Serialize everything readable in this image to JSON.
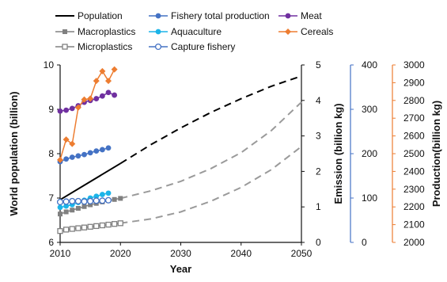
{
  "chart_data": {
    "type": "line",
    "xlabel": "Year",
    "x_ticks": [
      "2010",
      "2020",
      "2030",
      "2040",
      "2050"
    ],
    "xlim": [
      2010,
      2050
    ],
    "axes": {
      "population": {
        "label": "World population (billion)",
        "lim": [
          6,
          10
        ],
        "ticks": [
          "6",
          "7",
          "8",
          "9",
          "10"
        ],
        "color": "#111111"
      },
      "emission": {
        "label": "Emission (billion kg)",
        "lim": [
          0,
          5
        ],
        "ticks": [
          "0",
          "1",
          "2",
          "3",
          "4",
          "5"
        ],
        "color": "#111111"
      },
      "fishery": {
        "lim": [
          0,
          400
        ],
        "ticks": [
          "0",
          "100",
          "200",
          "300",
          "400"
        ],
        "color": "#4472c4"
      },
      "production": {
        "label": "Production(billion kg)",
        "lim": [
          2000,
          3000
        ],
        "ticks": [
          "2000",
          "2100",
          "2200",
          "2300",
          "2400",
          "2500",
          "2600",
          "2700",
          "2800",
          "2900",
          "3000"
        ],
        "color": "#ed7d31"
      }
    },
    "series": [
      {
        "name": "Population",
        "axis": "population",
        "color": "#000000",
        "marker": "none",
        "historical": {
          "x": [
            2010,
            2020
          ],
          "y": [
            6.96,
            7.78
          ]
        },
        "projection": {
          "x": [
            2020,
            2025,
            2030,
            2035,
            2040,
            2045,
            2050
          ],
          "y": [
            7.78,
            8.2,
            8.58,
            8.93,
            9.24,
            9.52,
            9.75
          ]
        }
      },
      {
        "name": "Macroplastics",
        "axis": "emission",
        "color": "#808080",
        "marker": "square",
        "historical": {
          "x": [
            2010,
            2011,
            2012,
            2013,
            2014,
            2015,
            2016,
            2017,
            2018,
            2019,
            2020
          ],
          "y": [
            0.8,
            0.86,
            0.91,
            0.96,
            1.01,
            1.06,
            1.1,
            1.14,
            1.18,
            1.21,
            1.24
          ]
        },
        "projection": {
          "x": [
            2020,
            2025,
            2030,
            2035,
            2040,
            2045,
            2050
          ],
          "y": [
            1.24,
            1.45,
            1.72,
            2.08,
            2.53,
            3.15,
            3.95
          ]
        }
      },
      {
        "name": "Microplastics",
        "axis": "emission",
        "color": "#808080",
        "marker": "square-open",
        "historical": {
          "x": [
            2010,
            2011,
            2012,
            2013,
            2014,
            2015,
            2016,
            2017,
            2018,
            2019,
            2020
          ],
          "y": [
            0.32,
            0.36,
            0.38,
            0.4,
            0.42,
            0.44,
            0.46,
            0.48,
            0.5,
            0.52,
            0.54
          ]
        },
        "projection": {
          "x": [
            2020,
            2025,
            2030,
            2035,
            2040,
            2045,
            2050
          ],
          "y": [
            0.54,
            0.66,
            0.86,
            1.16,
            1.55,
            2.05,
            2.7
          ]
        }
      },
      {
        "name": "Fishery total production",
        "axis": "fishery",
        "color": "#4472c4",
        "marker": "circle",
        "historical": {
          "x": [
            2010,
            2011,
            2012,
            2013,
            2014,
            2015,
            2016,
            2017,
            2018
          ],
          "y": [
            182,
            188,
            192,
            195,
            198,
            202,
            206,
            209,
            213
          ]
        }
      },
      {
        "name": "Aquaculture",
        "axis": "fishery",
        "color": "#1cb4e8",
        "marker": "circle",
        "historical": {
          "x": [
            2010,
            2011,
            2012,
            2013,
            2014,
            2015,
            2016,
            2017,
            2018
          ],
          "y": [
            79,
            82,
            85,
            90,
            95,
            100,
            104,
            108,
            111
          ]
        }
      },
      {
        "name": "Capture fishery",
        "axis": "fishery",
        "color": "#4472c4",
        "marker": "circle-open",
        "historical": {
          "x": [
            2010,
            2011,
            2012,
            2013,
            2014,
            2015,
            2016,
            2017,
            2018
          ],
          "y": [
            91,
            92,
            93,
            93,
            92,
            93,
            94,
            94,
            95
          ]
        }
      },
      {
        "name": "Meat",
        "axis": "production",
        "color": "#7030a0",
        "marker": "circle",
        "historical": {
          "x": [
            2010,
            2011,
            2012,
            2013,
            2014,
            2015,
            2016,
            2017,
            2018,
            2019
          ],
          "y": [
            2740,
            2745,
            2755,
            2770,
            2790,
            2800,
            2810,
            2825,
            2845,
            2830
          ]
        }
      },
      {
        "name": "Cereals",
        "axis": "production",
        "color": "#ed7d31",
        "marker": "diamond",
        "historical": {
          "x": [
            2010,
            2011,
            2012,
            2013,
            2014,
            2015,
            2016,
            2017,
            2018,
            2019
          ],
          "y": [
            2465,
            2580,
            2555,
            2760,
            2805,
            2810,
            2910,
            2965,
            2910,
            2975
          ]
        }
      }
    ]
  }
}
